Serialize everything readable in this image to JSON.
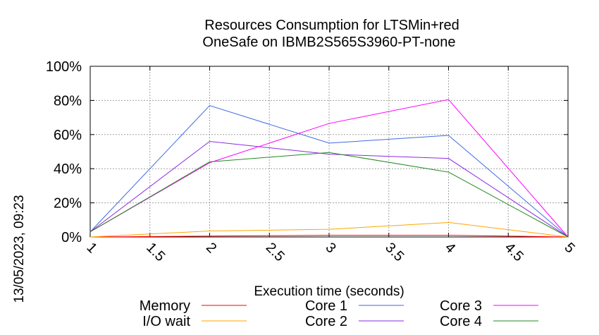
{
  "chart_data": {
    "type": "line",
    "title": "Resources Consumption for LTSMin+red",
    "subtitle": "OneSafe on IBMB2S565S3960-PT-none",
    "xlabel": "Execution time (seconds)",
    "ylabel": "",
    "side_label": "13/05/2023, 09:23",
    "xlim": [
      1,
      5
    ],
    "ylim": [
      0,
      100
    ],
    "x_ticks": [
      "1",
      "1.5",
      "2",
      "2.5",
      "3",
      "3.5",
      "4",
      "4.5",
      "5"
    ],
    "y_ticks": [
      "0%",
      "20%",
      "40%",
      "60%",
      "80%",
      "100%"
    ],
    "grid": true,
    "legend_position": "bottom",
    "x": [
      1,
      2,
      3,
      4,
      5
    ],
    "series": [
      {
        "name": "Memory",
        "color": "#ff0000",
        "values": [
          0,
          0.5,
          1,
          1,
          0
        ]
      },
      {
        "name": "I/O wait",
        "color": "#ffa500",
        "values": [
          0,
          3.5,
          4.5,
          8.5,
          0
        ]
      },
      {
        "name": "Core 1",
        "color": "#4169e1",
        "values": [
          3,
          77,
          55,
          59.5,
          0
        ]
      },
      {
        "name": "Core 2",
        "color": "#8a2be2",
        "values": [
          3,
          56,
          48.5,
          46,
          0
        ]
      },
      {
        "name": "Core 3",
        "color": "#ff00ff",
        "values": [
          3,
          43.5,
          66.5,
          80.5,
          0
        ]
      },
      {
        "name": "Core 4",
        "color": "#228b22",
        "values": [
          3,
          44,
          49.5,
          38,
          0
        ]
      }
    ]
  }
}
